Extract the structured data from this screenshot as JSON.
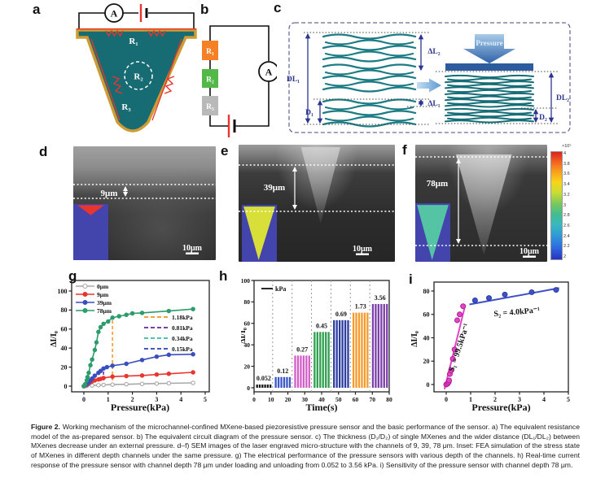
{
  "caption": {
    "label": "Figure 2.",
    "body": "Working mechanism of the microchannel-confined MXene-based piezoresistive pressure sensor and the basic performance of the sensor. a) The equivalent resistance model of the as-prepared sensor. b) The equivalent circuit diagram of the pressure sensor. c) The thickness (D₁/D₂) of single MXenes and the wider distance (DL₁/DL₂) between MXenes decrease under an external pressure. d–f) SEM images of the laser engraved micro-structure with the channels of 9, 39, 78 μm. Inset: FEA simulation of the stress state of MXenes in different depth channels under the same pressure. g) The electrical performance of the pressure sensors with various depth of the channels. h) Real-time current response of the pressure sensor with channel depth 78 μm under loading and unloading from 0.052 to 3.56 kPa. i) Sensitivity of the pressure sensor with channel depth 78 μm."
  },
  "panels": {
    "a": {
      "letter": "a",
      "ammeter": "A",
      "r1": "R₁",
      "r2": "R₂",
      "r3": "R₃",
      "colors": {
        "mxene_fill": "#176b72",
        "gold_border": "#cf9b33",
        "red_line": "#e8352e"
      }
    },
    "b": {
      "letter": "b",
      "ammeter": "A",
      "resistors": [
        {
          "label": "R₁",
          "color": "#f58026"
        },
        {
          "label": "R₂",
          "color": "#52b848"
        },
        {
          "label": "R₃",
          "color": "#b9b9b9"
        }
      ]
    },
    "c": {
      "letter": "c",
      "pressure": "Pressure",
      "dl1": "DL₁",
      "dl2": "DL₂",
      "d1": "D₁",
      "d2": "D₂",
      "delta_l1": "ΔL₁",
      "delta_l2": "ΔL₂"
    },
    "d": {
      "letter": "d",
      "depth": "9μm",
      "scale": "10μm"
    },
    "e": {
      "letter": "e",
      "depth": "39μm",
      "scale": "10μm"
    },
    "f": {
      "letter": "f",
      "depth": "78μm",
      "scale": "10μm",
      "colorbar": {
        "multiplier": "×10⁵",
        "ticks": [
          "4",
          "3.8",
          "3.6",
          "3.4",
          "3.2",
          "3",
          "2.8",
          "2.6",
          "2.4",
          "2.2",
          "2"
        ]
      }
    },
    "g": {
      "letter": "g"
    },
    "h": {
      "letter": "h"
    },
    "i": {
      "letter": "i"
    }
  },
  "chart_data": [
    {
      "panel": "g",
      "type": "line",
      "xlabel": "Pressure(kPa)",
      "ylabel": "ΔI/I₀",
      "xlim": [
        -0.5,
        5.2
      ],
      "ylim": [
        -8,
        112
      ],
      "xticks": [
        0,
        1,
        2,
        3,
        4,
        5
      ],
      "yticks": [
        0,
        20,
        40,
        60,
        80,
        100
      ],
      "series": [
        {
          "name": "0μm",
          "color": "#a8a8a8",
          "open": true,
          "x": [
            0,
            0.12,
            0.34,
            0.6,
            0.81,
            1.18,
            1.75,
            2.4,
            3.0,
            3.5,
            4.5
          ],
          "y": [
            0,
            0.3,
            0.7,
            1.0,
            1.3,
            1.6,
            2.0,
            2.4,
            2.7,
            3.0,
            3.4
          ]
        },
        {
          "name": "9μm",
          "color": "#e8352e",
          "x": [
            0,
            0.052,
            0.12,
            0.15,
            0.2,
            0.27,
            0.34,
            0.45,
            0.6,
            0.69,
            0.81,
            1.18,
            1.75,
            2.4,
            3.0,
            3.5,
            4.5
          ],
          "y": [
            0,
            0.5,
            1.5,
            2.2,
            3.0,
            4.0,
            5.0,
            6.0,
            7.0,
            7.6,
            8.6,
            10.0,
            10.6,
            11.2,
            12.2,
            13.0,
            14.5
          ]
        },
        {
          "name": "39μm",
          "color": "#3a4fbe",
          "x": [
            0,
            0.052,
            0.12,
            0.15,
            0.2,
            0.27,
            0.34,
            0.45,
            0.6,
            0.69,
            0.81,
            0.95,
            1.18,
            1.75,
            2.4,
            3.0,
            3.5,
            4.5
          ],
          "y": [
            0,
            1,
            2,
            3,
            4.2,
            6,
            8,
            11,
            14,
            16,
            18.5,
            20,
            21.5,
            23.5,
            27.5,
            31,
            33,
            33.5
          ]
        },
        {
          "name": "78μm",
          "color": "#2d9c6a",
          "x": [
            0,
            0.052,
            0.12,
            0.15,
            0.2,
            0.27,
            0.34,
            0.45,
            0.52,
            0.6,
            0.69,
            0.81,
            1.0,
            1.18,
            1.45,
            1.75,
            2.0,
            2.4,
            3.5,
            4.5
          ],
          "y": [
            0,
            2,
            6,
            9.5,
            14,
            22,
            28,
            38,
            46,
            57,
            62,
            65.5,
            68,
            72,
            73.5,
            75,
            76.5,
            77,
            79,
            81
          ]
        }
      ],
      "thresholds": [
        {
          "label": "1.18kPa",
          "color": "#f6a13a",
          "x": 1.18,
          "ytop": 72
        },
        {
          "label": "0.81kPa",
          "color": "#7b3fa8",
          "x": 0.81,
          "ytop": 19
        },
        {
          "label": "0.34kPa",
          "color": "#4cc4b4",
          "x": 0.34,
          "ytop": 8
        },
        {
          "label": "0.15kPa",
          "color": "#4656c8",
          "x": 0.15,
          "ytop": 10
        }
      ]
    },
    {
      "panel": "h",
      "type": "bar",
      "xlabel": "Time(s)",
      "ylabel": "ΔI/I₀",
      "legend": "kPa",
      "xlim": [
        0,
        80
      ],
      "ylim": [
        0,
        105
      ],
      "xticks": [
        0,
        10,
        20,
        30,
        40,
        50,
        60,
        70,
        80
      ],
      "yticks": [
        0,
        20,
        40,
        60,
        80,
        100
      ],
      "gridlines": [
        11,
        22.5,
        34,
        45.5,
        57,
        68.5
      ],
      "pulses_per_group": 6,
      "groups": [
        {
          "label": "0.052",
          "color": "#1a1a1a",
          "t0": 1,
          "t1": 10.5,
          "height": 3
        },
        {
          "label": "0.12",
          "color": "#3a55c5",
          "t0": 12,
          "t1": 22,
          "height": 10
        },
        {
          "label": "0.27",
          "color": "#d45ec8",
          "t0": 23.5,
          "t1": 33.5,
          "height": 30
        },
        {
          "label": "0.45",
          "color": "#2e9e4f",
          "t0": 35,
          "t1": 45,
          "height": 52
        },
        {
          "label": "0.69",
          "color": "#2b3da0",
          "t0": 46.5,
          "t1": 56.5,
          "height": 63
        },
        {
          "label": "1.73",
          "color": "#f59a2b",
          "t0": 58,
          "t1": 68,
          "height": 70
        },
        {
          "label": "3.56",
          "color": "#7d3fa8",
          "t0": 69.5,
          "t1": 79.5,
          "height": 78
        }
      ]
    },
    {
      "panel": "i",
      "type": "scatter",
      "xlabel": "Pressure(kPa)",
      "ylabel": "ΔI/I₀",
      "xlim": [
        -0.5,
        5.2
      ],
      "ylim": [
        -6,
        92
      ],
      "xticks": [
        0,
        1,
        2,
        3,
        4,
        5
      ],
      "yticks": [
        0,
        20,
        40,
        60,
        80
      ],
      "series": [
        {
          "name": "S1-points",
          "color": "#e145c4",
          "edge": "#b01e96",
          "points": [
            [
              0,
              0
            ],
            [
              0.052,
              0.6
            ],
            [
              0.1,
              2
            ],
            [
              0.12,
              3.5
            ],
            [
              0.15,
              9
            ],
            [
              0.2,
              12
            ],
            [
              0.27,
              22
            ],
            [
              0.34,
              30
            ],
            [
              0.45,
              55
            ],
            [
              0.55,
              60
            ],
            [
              0.69,
              67
            ]
          ]
        },
        {
          "name": "S2-points",
          "color": "#4050c8",
          "edge": "#283aa0",
          "points": [
            [
              1.18,
              72
            ],
            [
              1.75,
              74
            ],
            [
              2.4,
              77
            ],
            [
              3.5,
              79
            ],
            [
              4.5,
              81
            ]
          ]
        }
      ],
      "fits": [
        {
          "name": "S1-fit",
          "color": "#e145c4",
          "x1": -0.07,
          "y1": -4,
          "x2": 0.78,
          "y2": 68
        },
        {
          "name": "S2-fit",
          "color": "#4050c8",
          "x1": 0.95,
          "y1": 68.5,
          "x2": 4.62,
          "y2": 82.5
        }
      ],
      "annotations": [
        {
          "text": "S₂ = 4.0kPa⁻¹",
          "x": 2.9,
          "y": 60,
          "rotate": -5
        },
        {
          "text": "S₁ = 99.5kPa⁻¹",
          "x": 0.62,
          "y": 31,
          "rotate": -72
        }
      ]
    }
  ]
}
